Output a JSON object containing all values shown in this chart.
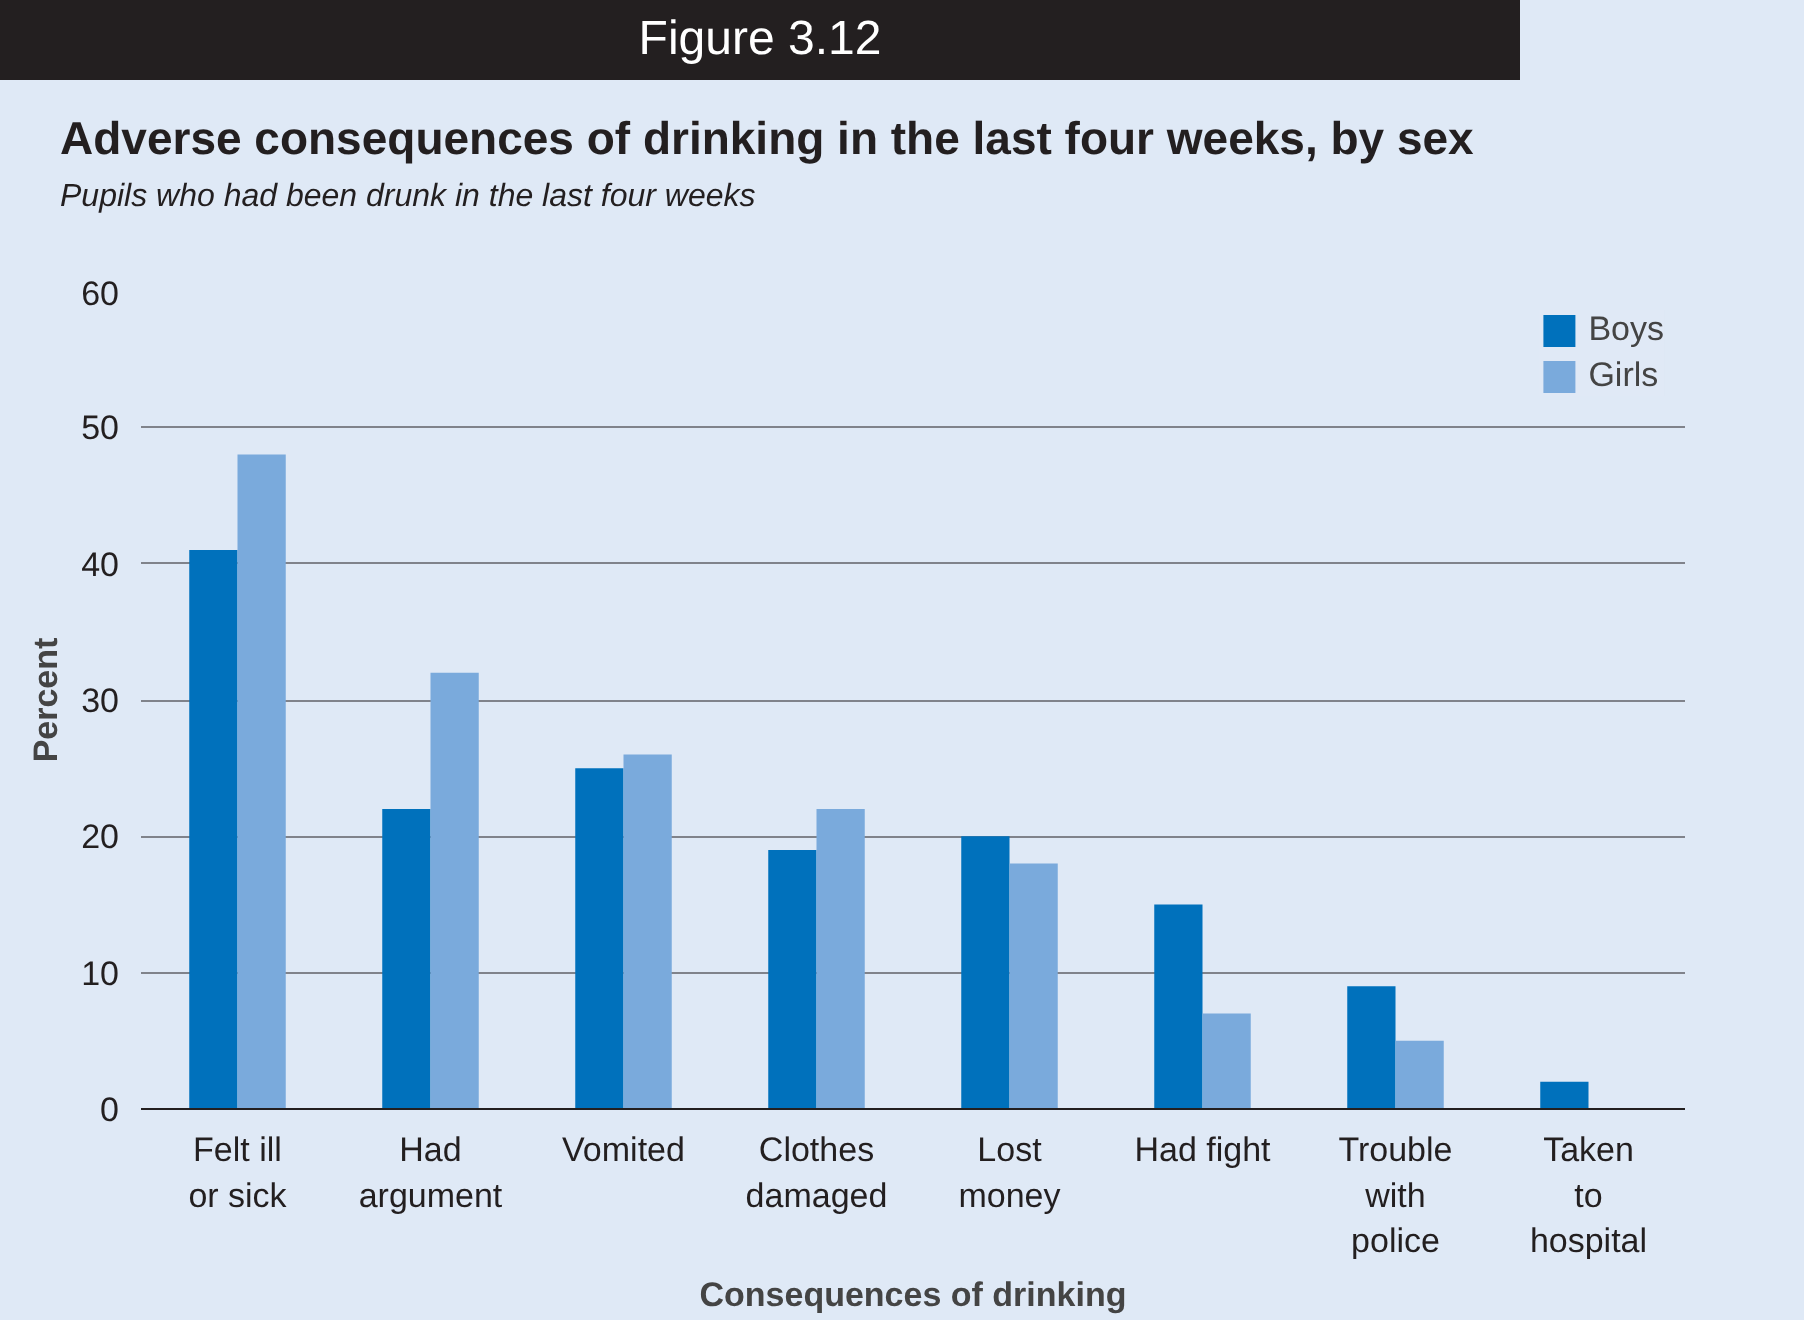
{
  "chart_data": {
    "type": "bar",
    "title": "Figure 3.12",
    "subtitle": "Adverse consequences of drinking in the last four weeks, by sex",
    "annotations": [
      "Pupils who had been drunk in the last four weeks"
    ],
    "xlabel": "Consequences of drinking",
    "ylabel": "Percent",
    "categories": [
      "Felt ill\nor sick",
      "Had\nargument",
      "Vomited",
      "Clothes\ndamaged",
      "Lost\nmoney",
      "Had fight",
      "Trouble\nwith\npolice",
      "Taken\nto\nhospital"
    ],
    "series": [
      {
        "name": "Boys",
        "color": "#0071bc",
        "values": [
          41,
          22,
          25,
          19,
          20,
          15,
          9,
          2
        ]
      },
      {
        "name": "Girls",
        "color": "#7aaadc",
        "values": [
          48,
          32,
          26,
          22,
          18,
          7,
          5,
          0
        ]
      }
    ],
    "ylim": [
      0,
      60
    ],
    "yticks": [
      0,
      10,
      20,
      30,
      40,
      50,
      60
    ],
    "grid": "y",
    "legend": "top right"
  }
}
